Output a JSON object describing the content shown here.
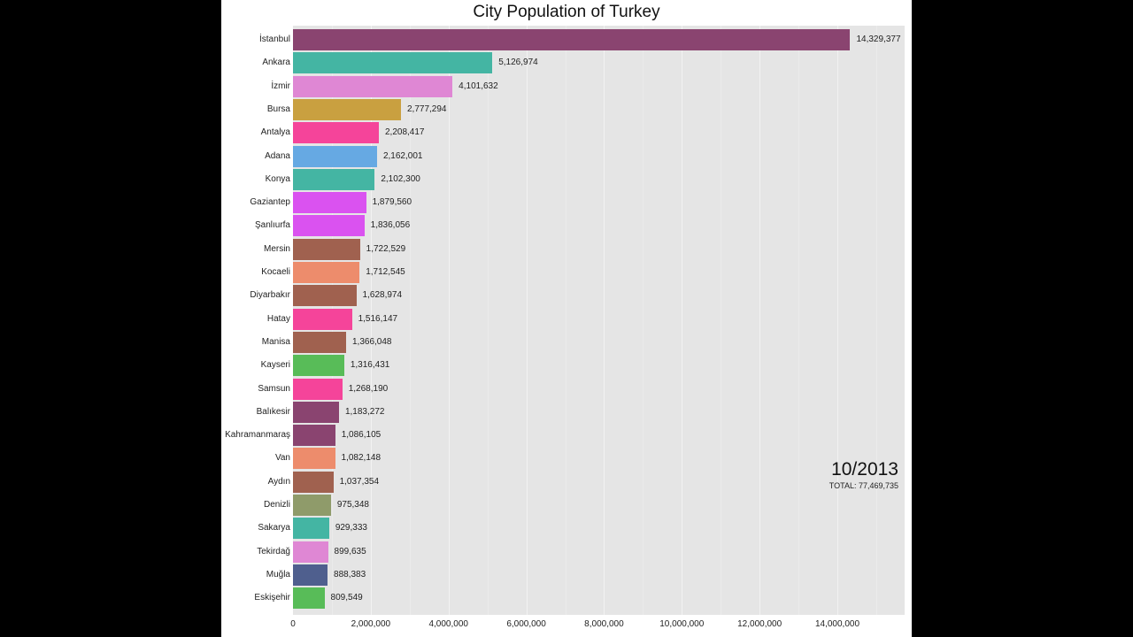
{
  "chart_data": {
    "type": "bar",
    "orientation": "horizontal",
    "title": "City Population of Turkey",
    "xlabel": "",
    "ylabel": "",
    "xlim": [
      0,
      15700000
    ],
    "grid": true,
    "period_label": "10/2013",
    "total_label": "TOTAL: 77,469,735",
    "x_ticks": [
      0,
      2000000,
      4000000,
      6000000,
      8000000,
      10000000,
      12000000,
      14000000
    ],
    "x_tick_labels": [
      "0",
      "2,000,000",
      "4,000,000",
      "6,000,000",
      "8,000,000",
      "10,000,000",
      "12,000,000",
      "14,000,000"
    ],
    "categories": [
      "İstanbul",
      "Ankara",
      "İzmir",
      "Bursa",
      "Antalya",
      "Adana",
      "Konya",
      "Gaziantep",
      "Şanlıurfa",
      "Mersin",
      "Kocaeli",
      "Diyarbakır",
      "Hatay",
      "Manisa",
      "Kayseri",
      "Samsun",
      "Balıkesir",
      "Kahramanmaraş",
      "Van",
      "Aydın",
      "Denizli",
      "Sakarya",
      "Tekirdağ",
      "Muğla",
      "Eskişehir"
    ],
    "values": [
      14329377,
      5126974,
      4101632,
      2777294,
      2208417,
      2162001,
      2102300,
      1879560,
      1836056,
      1722529,
      1712545,
      1628974,
      1516147,
      1366048,
      1316431,
      1268190,
      1183272,
      1086105,
      1082148,
      1037354,
      975348,
      929333,
      899635,
      888383,
      809549
    ],
    "value_labels": [
      "14,329,377",
      "5,126,974",
      "4,101,632",
      "2,777,294",
      "2,208,417",
      "2,162,001",
      "2,102,300",
      "1,879,560",
      "1,836,056",
      "1,722,529",
      "1,712,545",
      "1,628,974",
      "1,516,147",
      "1,366,048",
      "1,316,431",
      "1,268,190",
      "1,183,272",
      "1,086,105",
      "1,082,148",
      "1,037,354",
      "975,348",
      "929,333",
      "899,635",
      "888,383",
      "809,549"
    ],
    "colors": [
      "#8a4470",
      "#44b5a3",
      "#df87d4",
      "#c9a040",
      "#f5449a",
      "#66a9e3",
      "#44b5a3",
      "#da52f0",
      "#da52f0",
      "#a0614f",
      "#ed8c6c",
      "#a0614f",
      "#f5449a",
      "#a0614f",
      "#58bc58",
      "#f5449a",
      "#8a4470",
      "#8a4470",
      "#ed8c6c",
      "#a0614f",
      "#8f9b6a",
      "#44b5a3",
      "#df87d4",
      "#4f5f8e",
      "#58bc58"
    ]
  }
}
